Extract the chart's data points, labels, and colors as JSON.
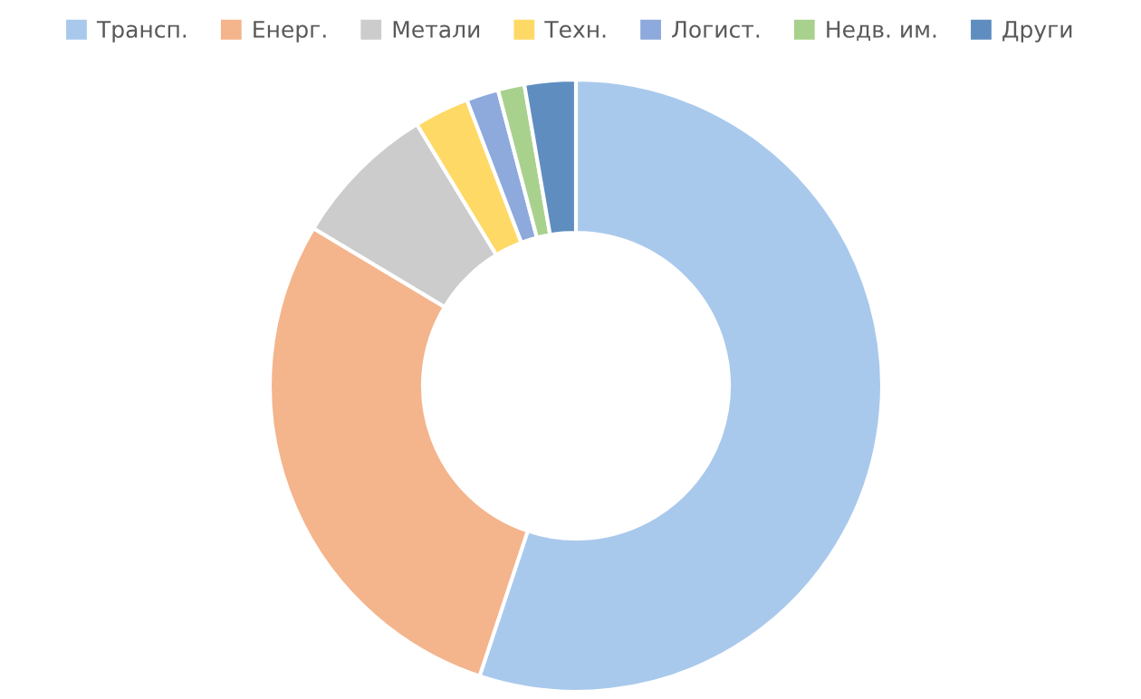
{
  "chart_data": {
    "type": "donut",
    "categories": [
      "Трансп.",
      "Енерг.",
      "Метали",
      "Техн.",
      "Логист.",
      "Недв. им.",
      "Други"
    ],
    "values": [
      55.1,
      28.5,
      7.7,
      2.9,
      1.7,
      1.4,
      2.7
    ],
    "colors": [
      "#a9c9ec",
      "#f4b48c",
      "#cccccc",
      "#ffd966",
      "#8ea9dc",
      "#a9d18e",
      "#5f8dc0"
    ],
    "legend": "top"
  }
}
